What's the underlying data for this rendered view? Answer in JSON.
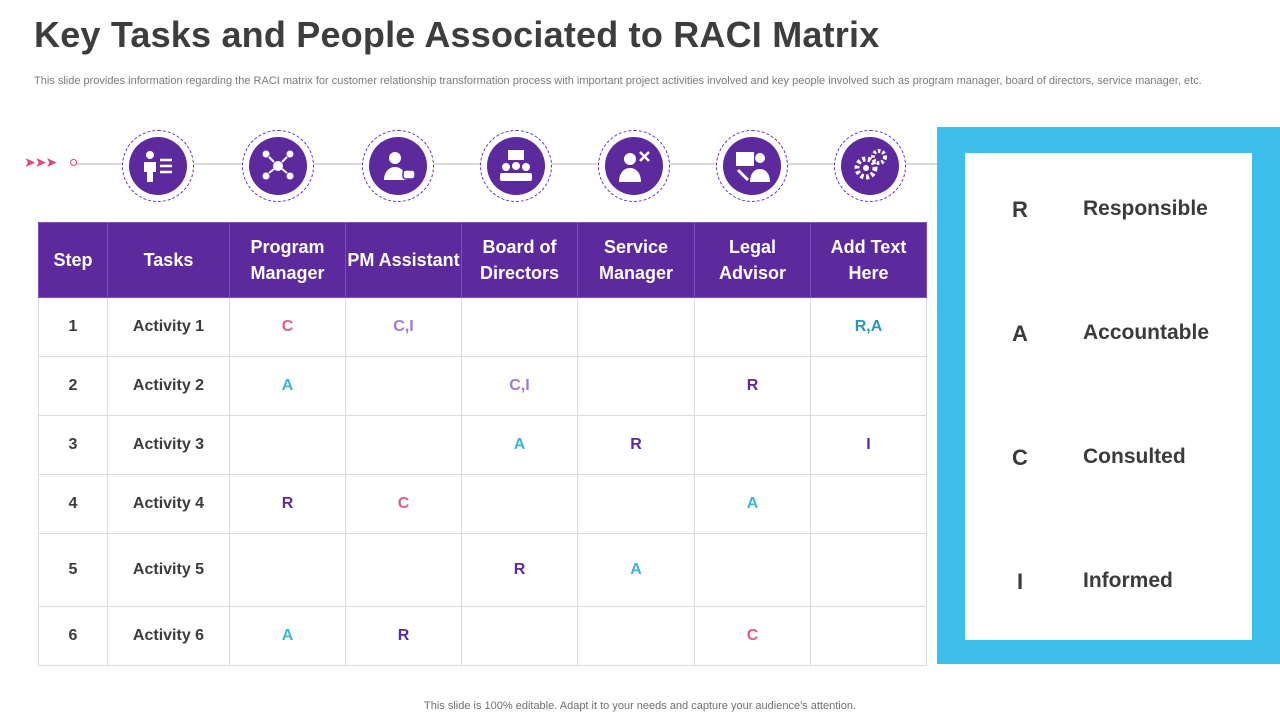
{
  "title": "Key Tasks and People Associated to RACI Matrix",
  "subtitle": "This slide provides information regarding the RACI  matrix for customer  relationship transformation process with important project activities involved and key people  involved such as program manager, board of directors, service manager, etc.",
  "footer": "This slide is 100% editable. Adapt it to your needs and capture your audience's attention.",
  "colors": {
    "accent": "#5c2a9d",
    "legend_frame": "#3dbfec",
    "pink": "#e0457b"
  },
  "timeline_icons": [
    "presenter-checklist-icon",
    "team-network-icon",
    "assistant-chat-icon",
    "board-meeting-icon",
    "service-tools-icon",
    "legal-advisor-icon",
    "gears-icon"
  ],
  "table": {
    "headers": [
      "Step",
      "Tasks",
      "Program Manager",
      "PM Assistant",
      "Board of Directors",
      "Service Manager",
      "Legal Advisor",
      "Add Text Here"
    ],
    "rows": [
      [
        "1",
        "Activity 1",
        "C",
        "C,I",
        "",
        "",
        "",
        "R,A"
      ],
      [
        "2",
        "Activity 2",
        "A",
        "",
        "C,I",
        "",
        "R",
        ""
      ],
      [
        "3",
        "Activity 3",
        "",
        "",
        "A",
        "R",
        "",
        "I"
      ],
      [
        "4",
        "Activity 4",
        "R",
        "C",
        "",
        "",
        "A",
        ""
      ],
      [
        "5",
        "Activity 5",
        "",
        "",
        "R",
        "A",
        "",
        ""
      ],
      [
        "6",
        "Activity 6",
        "A",
        "R",
        "",
        "",
        "C",
        ""
      ]
    ]
  },
  "legend": [
    {
      "letter": "R",
      "label": "Responsible"
    },
    {
      "letter": "A",
      "label": "Accountable"
    },
    {
      "letter": "C",
      "label": "Consulted"
    },
    {
      "letter": "I",
      "label": "Informed"
    }
  ]
}
